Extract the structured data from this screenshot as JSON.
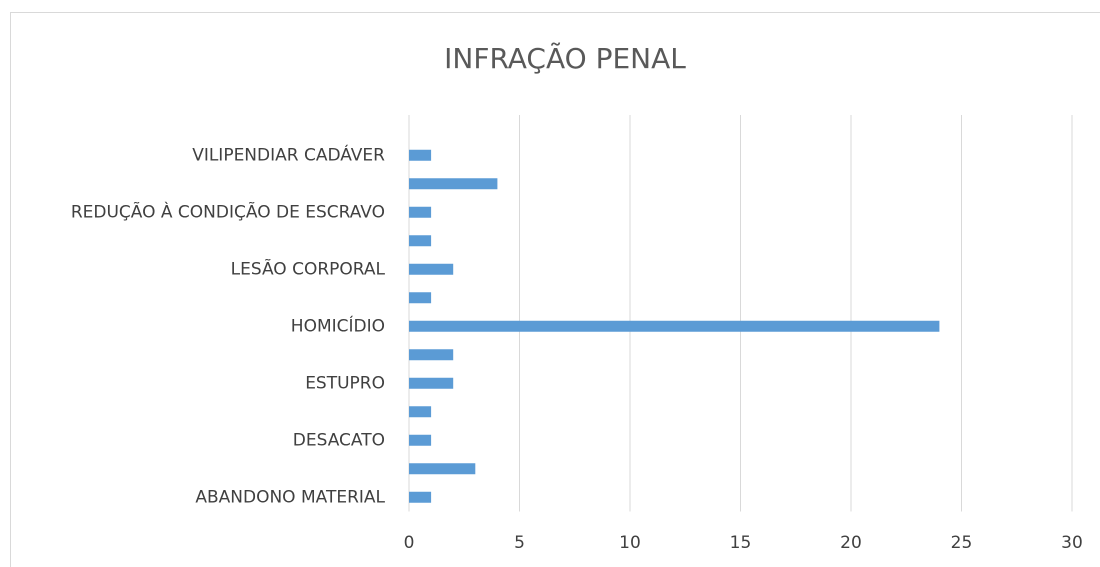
{
  "chart_data": {
    "type": "bar",
    "orientation": "horizontal",
    "title": "INFRAÇÃO PENAL",
    "categories": [
      "ABANDONO MATERIAL",
      null,
      "DESACATO",
      null,
      "ESTUPRO",
      null,
      "HOMICÍDIO",
      null,
      "LESÃO CORPORAL",
      null,
      "REDUÇÃO À CONDIÇÃO DE ESCRAVO",
      null,
      "VILIPENDIAR CADÁVER"
    ],
    "values": [
      1,
      3,
      1,
      1,
      2,
      2,
      24,
      1,
      2,
      1,
      1,
      4,
      1
    ],
    "color": "#5b9bd5",
    "xlim": [
      0,
      30
    ],
    "xticks": [
      0,
      5,
      10,
      15,
      20,
      25,
      30
    ],
    "grid": true
  }
}
